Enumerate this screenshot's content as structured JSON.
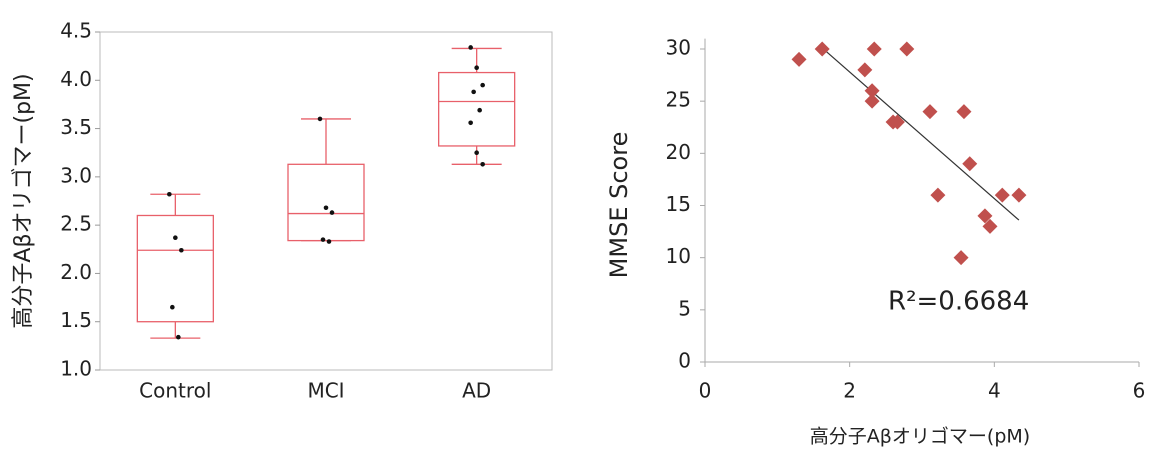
{
  "chart_data": [
    {
      "type": "box",
      "y_label": "高分子Aβオリゴマー(pM)",
      "categories": [
        "Control",
        "MCI",
        "AD"
      ],
      "boxes": [
        {
          "whisker_low": 1.33,
          "q1": 1.5,
          "median": 2.24,
          "q3": 2.6,
          "whisker_high": 2.82
        },
        {
          "whisker_low": 2.34,
          "q1": 2.34,
          "median": 2.62,
          "q3": 3.13,
          "whisker_high": 3.6
        },
        {
          "whisker_low": 3.13,
          "q1": 3.32,
          "median": 3.78,
          "q3": 4.08,
          "whisker_high": 4.33
        }
      ],
      "points": [
        [
          2.82,
          2.37,
          2.24,
          1.65,
          1.34
        ],
        [
          3.6,
          2.68,
          2.63,
          2.35,
          2.33
        ],
        [
          4.34,
          4.13,
          3.95,
          3.88,
          3.69,
          3.56,
          3.25,
          3.13
        ]
      ],
      "color": "#e8606a",
      "point_color": "#111111",
      "frame": true,
      "ylim": [
        1,
        4.5
      ],
      "yticks": [
        {
          "value": 1,
          "label": "1.0"
        },
        1.5,
        {
          "value": 2,
          "label": "2.0"
        },
        2.5,
        {
          "value": 3,
          "label": "3.0"
        },
        3.5,
        {
          "value": 4,
          "label": "4.0"
        },
        4.5
      ]
    },
    {
      "type": "scatter",
      "x_label": "高分子Aβオリゴマー(pM)",
      "y_label": "MMSE Score",
      "x": [
        1.3,
        1.62,
        2.21,
        2.31,
        2.34,
        2.31,
        2.6,
        2.66,
        2.79,
        3.11,
        3.22,
        3.58,
        3.66,
        3.54,
        3.87,
        3.94,
        4.11,
        4.34
      ],
      "values": [
        29,
        30,
        28,
        26,
        30,
        25,
        23,
        23,
        30,
        24,
        16,
        24,
        19,
        10,
        14,
        13,
        16,
        16
      ],
      "color": "#c0504d",
      "trendline": {
        "x": [
          1.62,
          4.34
        ],
        "y": [
          30.1,
          13.6
        ],
        "color": "#333333"
      },
      "annotation": "R²=0.6684",
      "xlim": [
        0,
        6
      ],
      "xticks": [
        0,
        2,
        4,
        6
      ],
      "ylim": [
        0,
        31
      ],
      "yticks": [
        0,
        5,
        10,
        15,
        20,
        25,
        30
      ]
    }
  ]
}
